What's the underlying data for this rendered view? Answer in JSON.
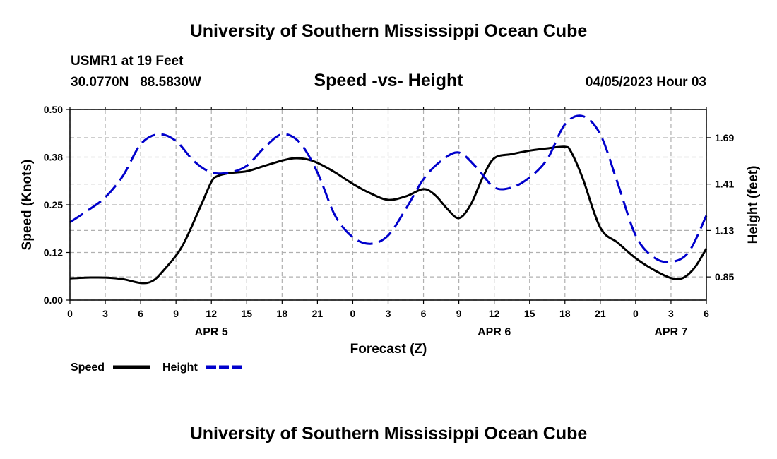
{
  "header": {
    "top_title": "University of Southern Mississippi Ocean Cube",
    "station": "USMR1 at 19 Feet",
    "coords": "30.0770N   88.5830W",
    "chart_title": "Speed -vs- Height",
    "datetime": "04/05/2023 Hour 03",
    "bottom_title": "University of Southern Mississippi Ocean Cube"
  },
  "colors": {
    "speed": "#000000",
    "height": "#0000cc",
    "grid": "#b0b0b0"
  },
  "chart_data": {
    "type": "line",
    "title": "Speed -vs- Height",
    "xlabel": "Forecast (Z)",
    "ylabel": "Speed (Knots)",
    "y2label": "Height (feet)",
    "xlim": [
      0,
      54
    ],
    "ylim": [
      0,
      0.5
    ],
    "y2lim": [
      0.71,
      1.86
    ],
    "x_ticks": [
      0,
      3,
      6,
      9,
      12,
      15,
      18,
      21,
      24,
      27,
      30,
      33,
      36,
      39,
      42,
      45,
      48,
      51,
      54
    ],
    "x_tick_labels": [
      "0",
      "3",
      "6",
      "9",
      "12",
      "15",
      "18",
      "21",
      "0",
      "3",
      "6",
      "9",
      "12",
      "15",
      "18",
      "21",
      "0",
      "3",
      "6"
    ],
    "day_labels": [
      {
        "x": 12,
        "label": "APR 5"
      },
      {
        "x": 36,
        "label": "APR 6"
      },
      {
        "x": 51,
        "label": "APR 7"
      }
    ],
    "y_ticks": [
      0.0,
      0.125,
      0.25,
      0.375,
      0.5
    ],
    "y_tick_labels": [
      "0.00",
      "0.12",
      "0.25",
      "0.38",
      "0.50"
    ],
    "y2_ticks": [
      0.85,
      1.13,
      1.41,
      1.69
    ],
    "y2_tick_labels": [
      "0.85",
      "1.13",
      "1.41",
      "1.69"
    ],
    "grid": true,
    "legend_position": "bottom-left",
    "series": [
      {
        "name": "Speed",
        "axis": "left",
        "style": "solid",
        "x": [
          0,
          1.5,
          3,
          4.5,
          6,
          7,
          8,
          9.5,
          11,
          12,
          12.5,
          13.5,
          15,
          16.5,
          18,
          19,
          20,
          21,
          22.5,
          24,
          25.5,
          27,
          28.5,
          30,
          31,
          32,
          33,
          34,
          35,
          36,
          37.5,
          39,
          40.5,
          42,
          42.5,
          43.5,
          45,
          46.5,
          48,
          49.5,
          51,
          52,
          53,
          54
        ],
        "values": [
          0.057,
          0.059,
          0.059,
          0.055,
          0.045,
          0.05,
          0.08,
          0.14,
          0.24,
          0.31,
          0.325,
          0.333,
          0.338,
          0.352,
          0.366,
          0.372,
          0.37,
          0.36,
          0.335,
          0.305,
          0.28,
          0.263,
          0.272,
          0.291,
          0.275,
          0.24,
          0.215,
          0.25,
          0.32,
          0.372,
          0.383,
          0.392,
          0.398,
          0.402,
          0.39,
          0.32,
          0.19,
          0.15,
          0.11,
          0.08,
          0.058,
          0.058,
          0.085,
          0.135
        ]
      },
      {
        "name": "Height",
        "axis": "right",
        "style": "dashed",
        "x": [
          0,
          1.5,
          3,
          4.5,
          6,
          7.5,
          9,
          10.5,
          12,
          13.5,
          15,
          16.5,
          18,
          19.5,
          21,
          22.5,
          24,
          25.5,
          27,
          28.5,
          30,
          31.5,
          33,
          34.5,
          36,
          37.5,
          39,
          40.5,
          42,
          43.5,
          45,
          46.5,
          48,
          49.5,
          51,
          52.5,
          54
        ],
        "values": [
          1.18,
          1.25,
          1.33,
          1.46,
          1.65,
          1.71,
          1.67,
          1.55,
          1.48,
          1.48,
          1.52,
          1.63,
          1.71,
          1.66,
          1.48,
          1.22,
          1.09,
          1.05,
          1.1,
          1.26,
          1.44,
          1.55,
          1.6,
          1.51,
          1.39,
          1.39,
          1.45,
          1.56,
          1.77,
          1.82,
          1.71,
          1.41,
          1.1,
          0.97,
          0.94,
          1.0,
          1.22
        ]
      }
    ]
  },
  "legend": {
    "speed_label": "Speed",
    "height_label": "Height"
  }
}
